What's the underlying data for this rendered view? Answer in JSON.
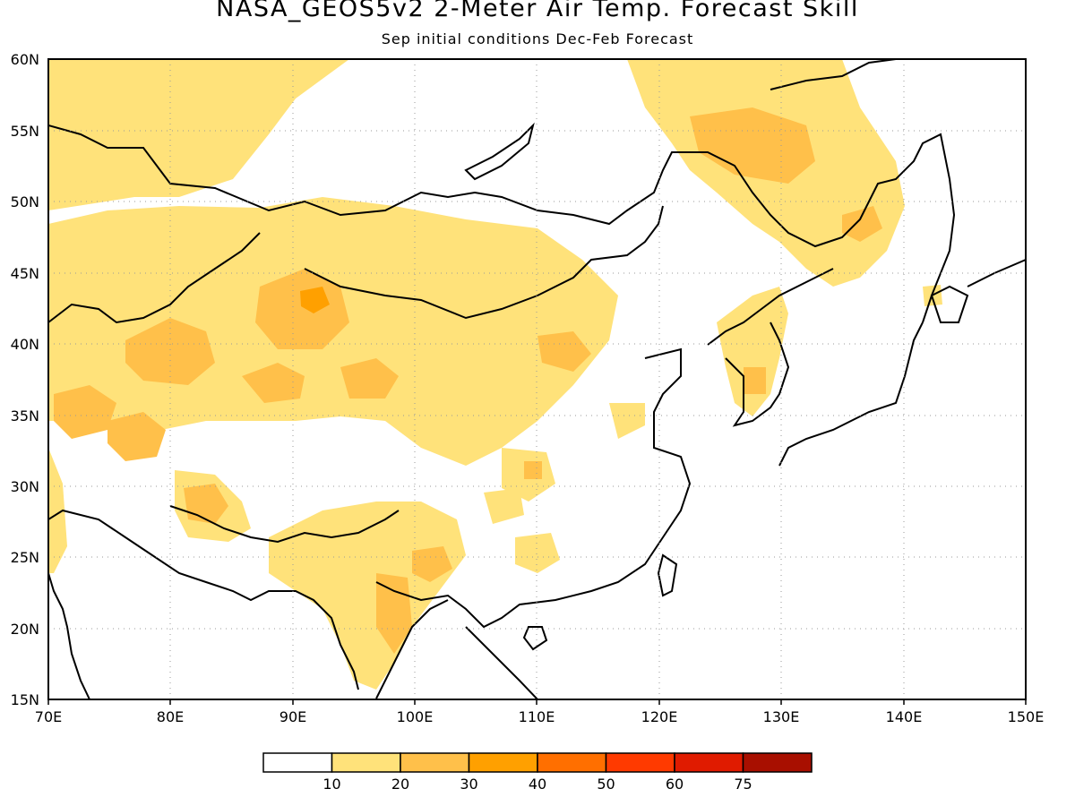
{
  "title": "NASA_GEOS5v2 2-Meter Air Temp. Forecast Skill",
  "subtitle": "Sep initial conditions  Dec-Feb Forecast",
  "map": {
    "lon_range": [
      70,
      150
    ],
    "lat_range": [
      15,
      60
    ],
    "lon_ticks": [
      "70E",
      "80E",
      "90E",
      "100E",
      "110E",
      "120E",
      "130E",
      "140E",
      "150E"
    ],
    "lat_ticks": [
      "15N",
      "20N",
      "25N",
      "30N",
      "35N",
      "40N",
      "45N",
      "50N",
      "55N",
      "60N"
    ],
    "grid": "dotted"
  },
  "colorbar": {
    "colors": [
      "#ffffff",
      "#ffe27a",
      "#ffc04a",
      "#ffa000",
      "#ff6f00",
      "#ff3a00",
      "#e01b00",
      "#a80f00"
    ],
    "labels": [
      "10",
      "20",
      "30",
      "40",
      "50",
      "60",
      "75"
    ]
  }
}
